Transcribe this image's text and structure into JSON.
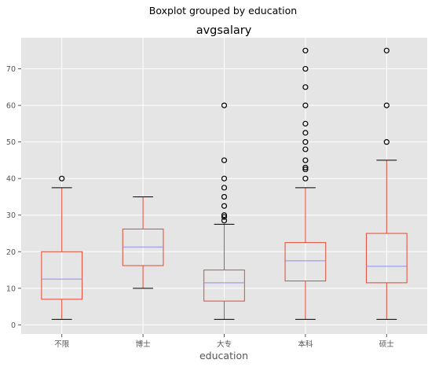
{
  "chart_data": {
    "type": "boxplot",
    "suptitle": "Boxplot grouped by education",
    "title": "avgsalary",
    "xlabel": "education",
    "ylabel": "",
    "ylim": [
      -2.5,
      78.5
    ],
    "yticks": [
      0,
      10,
      20,
      30,
      40,
      50,
      60,
      70
    ],
    "grid": true,
    "colors": {
      "background": "#e5e5e5",
      "grid": "#ffffff",
      "box": "#e24a33",
      "median": "#8d8ef0",
      "flier": "#000000",
      "tick_text": "#555555",
      "title_text": "#000000"
    },
    "categories": [
      "不限",
      "博士",
      "大专",
      "本科",
      "硕士"
    ],
    "boxes": [
      {
        "category": "不限",
        "whisker_low": 1.5,
        "q1": 7,
        "median": 12.5,
        "q3": 20,
        "whisker_high": 37.5,
        "fliers": [
          40
        ]
      },
      {
        "category": "博士",
        "whisker_low": 10,
        "q1": 16.2,
        "median": 21.3,
        "q3": 26.2,
        "whisker_high": 35,
        "fliers": []
      },
      {
        "category": "大专",
        "whisker_low": 1.5,
        "q1": 6.5,
        "median": 11.5,
        "q3": 15,
        "whisker_high": 27.5,
        "fliers": [
          28.5,
          29.5,
          30,
          32.5,
          35,
          37.5,
          40,
          45,
          60
        ]
      },
      {
        "category": "本科",
        "whisker_low": 1.5,
        "q1": 12,
        "median": 17.5,
        "q3": 22.5,
        "whisker_high": 37.5,
        "fliers": [
          40,
          42.5,
          43,
          45,
          48,
          50,
          52.5,
          55,
          60,
          65,
          70,
          75
        ]
      },
      {
        "category": "硕士",
        "whisker_low": 1.5,
        "q1": 11.5,
        "median": 16,
        "q3": 25,
        "whisker_high": 45,
        "fliers": [
          50,
          60,
          75
        ]
      }
    ]
  }
}
